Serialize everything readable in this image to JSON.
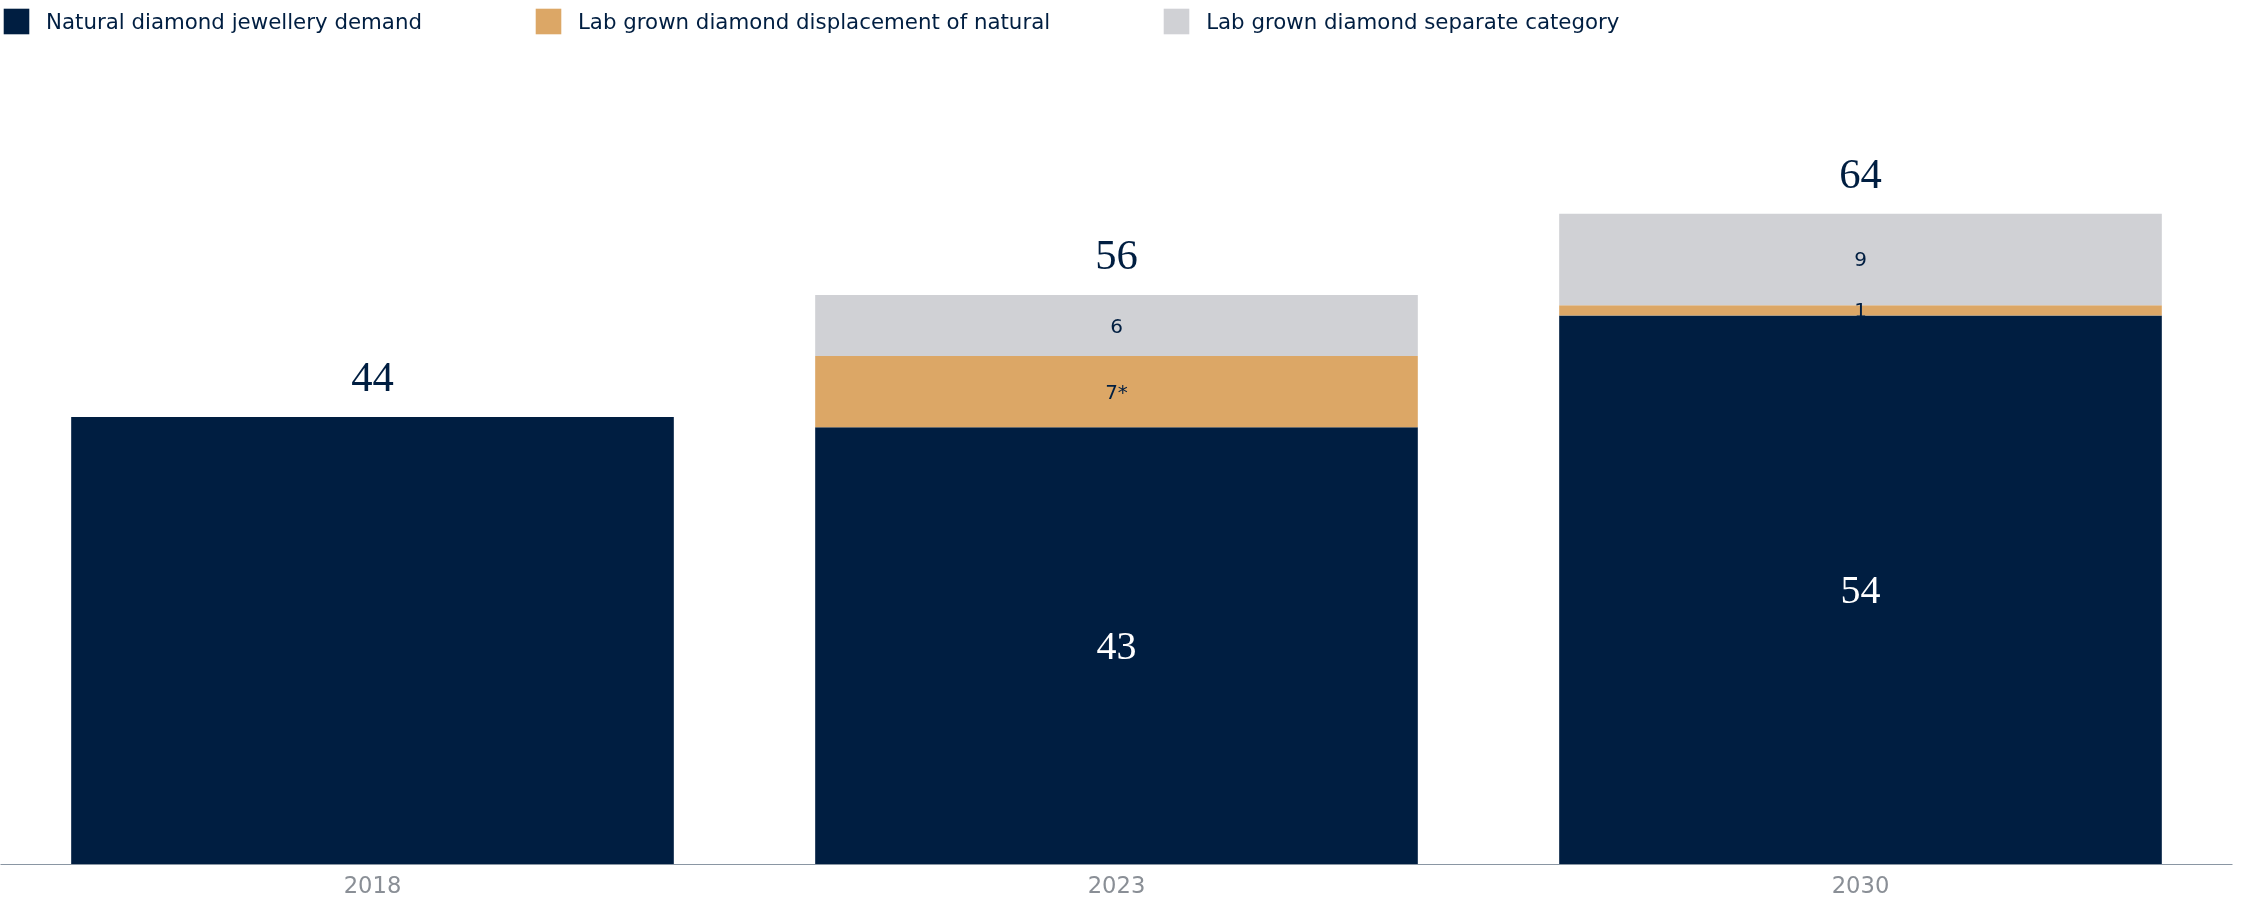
{
  "chart_data": {
    "type": "bar",
    "stacked": true,
    "categories": [
      "2018",
      "2023",
      "2030"
    ],
    "series": [
      {
        "name": "Natural diamond jewellery demand",
        "color": "#001e41",
        "values": [
          44,
          43,
          54
        ],
        "value_labels": [
          null,
          "43",
          "54"
        ]
      },
      {
        "name": "Lab grown diamond displacement of natural",
        "color": "#dca766",
        "values": [
          null,
          7,
          1
        ],
        "value_labels": [
          null,
          "7*",
          "1"
        ]
      },
      {
        "name": "Lab grown diamond separate category",
        "color": "#d0d1d5",
        "values": [
          null,
          6,
          9
        ],
        "value_labels": [
          null,
          "6",
          "9"
        ]
      }
    ],
    "totals": [
      "44",
      "56",
      "64"
    ],
    "legend": "top left",
    "grid": false
  }
}
